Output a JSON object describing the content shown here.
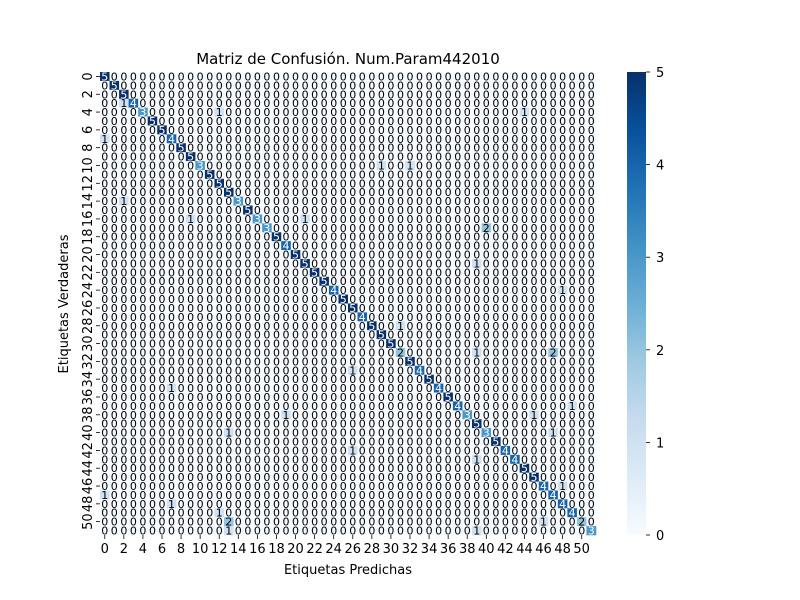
{
  "chart_data": {
    "type": "heatmap",
    "title": "Matriz de Confusión. Num.Param442010",
    "xlabel": "Etiquetas Predichas",
    "ylabel": "Etiquetas Verdaderas",
    "n_classes": 52,
    "tick_labels": [
      "0",
      "2",
      "4",
      "6",
      "8",
      "10",
      "12",
      "14",
      "16",
      "18",
      "20",
      "22",
      "24",
      "26",
      "28",
      "30",
      "32",
      "34",
      "36",
      "38",
      "40",
      "42",
      "44",
      "46",
      "48",
      "50"
    ],
    "colorbar": {
      "min": 0,
      "max": 5,
      "ticks": [
        "0",
        "1",
        "2",
        "3",
        "4",
        "5"
      ],
      "colormap": "Blues"
    },
    "diagonal": [
      5,
      5,
      5,
      4,
      3,
      5,
      5,
      4,
      5,
      5,
      3,
      5,
      5,
      5,
      3,
      5,
      3,
      3,
      5,
      4,
      5,
      5,
      5,
      5,
      4,
      5,
      5,
      4,
      5,
      5,
      5,
      2,
      5,
      4,
      5,
      4,
      5,
      4,
      3,
      5,
      3,
      5,
      4,
      4,
      5,
      5,
      4,
      4,
      4,
      4,
      2,
      3
    ],
    "off_diagonal": [
      {
        "row": 3,
        "col": 2,
        "value": 1
      },
      {
        "row": 4,
        "col": 12,
        "value": 1
      },
      {
        "row": 4,
        "col": 44,
        "value": 1
      },
      {
        "row": 7,
        "col": 0,
        "value": 1
      },
      {
        "row": 10,
        "col": 29,
        "value": 1
      },
      {
        "row": 10,
        "col": 32,
        "value": 1
      },
      {
        "row": 14,
        "col": 2,
        "value": 1
      },
      {
        "row": 16,
        "col": 9,
        "value": 1
      },
      {
        "row": 16,
        "col": 21,
        "value": 1
      },
      {
        "row": 17,
        "col": 40,
        "value": 2
      },
      {
        "row": 21,
        "col": 39,
        "value": 1
      },
      {
        "row": 24,
        "col": 48,
        "value": 1
      },
      {
        "row": 28,
        "col": 31,
        "value": 1
      },
      {
        "row": 31,
        "col": 39,
        "value": 1
      },
      {
        "row": 31,
        "col": 47,
        "value": 2
      },
      {
        "row": 33,
        "col": 26,
        "value": 1
      },
      {
        "row": 35,
        "col": 7,
        "value": 1
      },
      {
        "row": 37,
        "col": 49,
        "value": 1
      },
      {
        "row": 38,
        "col": 19,
        "value": 1
      },
      {
        "row": 38,
        "col": 45,
        "value": 1
      },
      {
        "row": 40,
        "col": 13,
        "value": 1
      },
      {
        "row": 40,
        "col": 47,
        "value": 1
      },
      {
        "row": 42,
        "col": 26,
        "value": 1
      },
      {
        "row": 43,
        "col": 39,
        "value": 1
      },
      {
        "row": 46,
        "col": 48,
        "value": 1
      },
      {
        "row": 47,
        "col": 0,
        "value": 1
      },
      {
        "row": 48,
        "col": 7,
        "value": 1
      },
      {
        "row": 49,
        "col": 12,
        "value": 1
      },
      {
        "row": 50,
        "col": 13,
        "value": 2
      },
      {
        "row": 50,
        "col": 46,
        "value": 1
      },
      {
        "row": 51,
        "col": 13,
        "value": 1
      },
      {
        "row": 51,
        "col": 39,
        "value": 1
      }
    ]
  }
}
